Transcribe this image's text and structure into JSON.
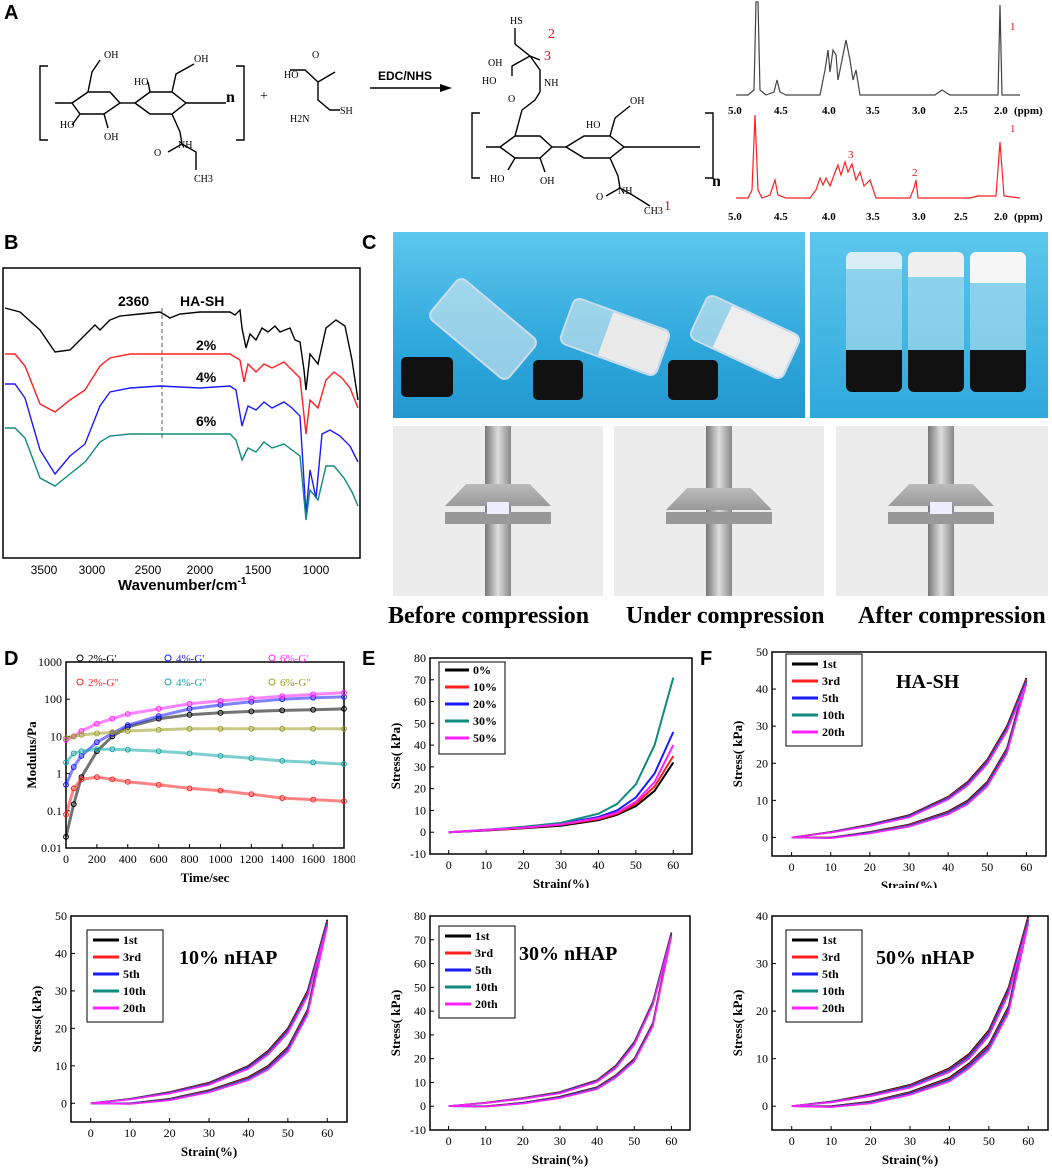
{
  "panels": {
    "A": "A",
    "B": "B",
    "C": "C",
    "D": "D",
    "E": "E",
    "F": "F"
  },
  "scheme": {
    "reagent": "EDC/NHS",
    "plus": "+",
    "n": "n",
    "oh": "OH",
    "ho": "HO",
    "o": "O",
    "nh": "NH",
    "sh": "SH",
    "h2n": "H2N",
    "ch3": "CH3",
    "label_sh": "HS",
    "num1": "1",
    "num2": "2",
    "num3": "3"
  },
  "nmr": {
    "unit": "(ppm)",
    "ticks": [
      "5.0",
      "4.5",
      "4.0",
      "3.5",
      "3.0",
      "2.5",
      "2.0"
    ],
    "top_peak_label": "1",
    "bottom_peak_labels": [
      "3",
      "2",
      "1"
    ]
  },
  "ftir": {
    "type": "line",
    "series_labels": [
      "HA-SH",
      "2%",
      "4%",
      "6%"
    ],
    "marker_label": "2360",
    "xlabel": "Wavenumber/cm",
    "xlabel_sup": "-1",
    "xticks": [
      "3500",
      "3000",
      "2500",
      "2000",
      "1500",
      "1000"
    ]
  },
  "photos": {
    "captions": [
      "Before compression",
      "Under compression",
      "After compression"
    ]
  },
  "colors": {
    "black": "#000000",
    "red": "#ff2020",
    "blue": "#1a1aff",
    "teal": "#0e8a7e",
    "magenta": "#ff20ff",
    "olive": "#9a9a20",
    "cyan": "#12a5a5"
  },
  "chart_data": [
    {
      "id": "D",
      "type": "scatter",
      "xlabel": "Time/sec",
      "ylabel": "Modulus/Pa",
      "xlim": [
        0,
        1800
      ],
      "ylim": [
        0.01,
        1000
      ],
      "yscale": "log",
      "xticks": [
        "0",
        "200",
        "400",
        "600",
        "800",
        "1000",
        "1200",
        "1400",
        "1600",
        "1800"
      ],
      "yticks": [
        "0.01",
        "0.1",
        "1",
        "10",
        "100",
        "1000"
      ],
      "legend": [
        "2%-G'",
        "2%-G''",
        "4%-G'",
        "4%-G''",
        "6%-G'",
        "6%-G''"
      ],
      "series": [
        {
          "name": "2%-G'",
          "x": [
            0,
            50,
            100,
            200,
            300,
            400,
            600,
            800,
            1000,
            1200,
            1400,
            1600,
            1800
          ],
          "values": [
            0.02,
            0.15,
            0.8,
            4,
            10,
            18,
            30,
            38,
            43,
            47,
            50,
            52,
            55
          ]
        },
        {
          "name": "2%-G''",
          "x": [
            0,
            50,
            100,
            200,
            300,
            400,
            600,
            800,
            1000,
            1200,
            1400,
            1600,
            1800
          ],
          "values": [
            0.08,
            0.4,
            0.7,
            0.8,
            0.7,
            0.6,
            0.5,
            0.4,
            0.35,
            0.28,
            0.22,
            0.2,
            0.18
          ]
        },
        {
          "name": "4%-G'",
          "x": [
            0,
            50,
            100,
            200,
            300,
            400,
            600,
            800,
            1000,
            1200,
            1400,
            1600,
            1800
          ],
          "values": [
            0.5,
            1.5,
            3,
            7,
            12,
            20,
            35,
            55,
            70,
            85,
            100,
            110,
            115
          ]
        },
        {
          "name": "4%-G''",
          "x": [
            0,
            50,
            100,
            200,
            300,
            400,
            600,
            800,
            1000,
            1200,
            1400,
            1600,
            1800
          ],
          "values": [
            2,
            3.5,
            4,
            4.5,
            4.5,
            4.4,
            4,
            3.5,
            3,
            2.6,
            2.2,
            2,
            1.8
          ]
        },
        {
          "name": "6%-G'",
          "x": [
            0,
            50,
            100,
            200,
            300,
            400,
            600,
            800,
            1000,
            1200,
            1400,
            1600,
            1800
          ],
          "values": [
            8,
            10,
            14,
            22,
            30,
            40,
            55,
            75,
            90,
            105,
            120,
            135,
            150
          ]
        },
        {
          "name": "6%-G''",
          "x": [
            0,
            50,
            100,
            200,
            300,
            400,
            600,
            800,
            1000,
            1200,
            1400,
            1600,
            1800
          ],
          "values": [
            9,
            10,
            11,
            12,
            13,
            14,
            15,
            16,
            16,
            16,
            16,
            16,
            16
          ]
        }
      ]
    },
    {
      "id": "E",
      "type": "line",
      "xlabel": "Strain(%)",
      "ylabel": "Stress(  kPa)",
      "xlim": [
        -5,
        65
      ],
      "ylim": [
        -10,
        80
      ],
      "xticks": [
        "0",
        "10",
        "20",
        "30",
        "40",
        "50",
        "60"
      ],
      "yticks": [
        "-10",
        "0",
        "10",
        "20",
        "30",
        "40",
        "50",
        "60",
        "70",
        "80"
      ],
      "series": [
        {
          "name": "0%",
          "x": [
            0,
            10,
            20,
            30,
            40,
            45,
            50,
            55,
            60
          ],
          "values": [
            0,
            0.8,
            1.8,
            3,
            5.5,
            8,
            12,
            19,
            32
          ]
        },
        {
          "name": "10%",
          "x": [
            0,
            10,
            20,
            30,
            40,
            45,
            50,
            55,
            60
          ],
          "values": [
            0,
            0.9,
            2,
            3.4,
            6,
            8.5,
            13,
            21,
            35
          ]
        },
        {
          "name": "20%",
          "x": [
            0,
            10,
            20,
            30,
            40,
            45,
            50,
            55,
            60
          ],
          "values": [
            0,
            1,
            2.2,
            3.8,
            7,
            10,
            16,
            27,
            46
          ]
        },
        {
          "name": "30%",
          "x": [
            0,
            10,
            20,
            30,
            40,
            45,
            50,
            55,
            60
          ],
          "values": [
            0,
            1.1,
            2.5,
            4.3,
            8.5,
            13,
            22,
            40,
            71
          ]
        },
        {
          "name": "50%",
          "x": [
            0,
            10,
            20,
            30,
            40,
            45,
            50,
            55,
            60
          ],
          "values": [
            0,
            1,
            2.1,
            3.6,
            6.5,
            9,
            14,
            23,
            40
          ]
        }
      ]
    },
    {
      "id": "F1",
      "type": "line",
      "title": "HA-SH",
      "xlabel": "Strain(%)",
      "ylabel": "Stress(  kPa)",
      "xlim": [
        -5,
        65
      ],
      "ylim": [
        -5,
        50
      ],
      "xticks": [
        "0",
        "10",
        "20",
        "30",
        "40",
        "50",
        "60"
      ],
      "yticks": [
        "0",
        "10",
        "20",
        "30",
        "40",
        "50"
      ],
      "loading": {
        "x": [
          0,
          10,
          20,
          30,
          40,
          45,
          50,
          55,
          60
        ],
        "values": [
          0,
          1.5,
          3.5,
          6,
          11,
          15,
          21,
          30,
          43
        ]
      },
      "unloading": {
        "x": [
          60,
          55,
          50,
          45,
          40,
          30,
          20,
          10,
          0
        ],
        "values": [
          43,
          24,
          15,
          10,
          7,
          3.5,
          1.5,
          0,
          0
        ]
      },
      "series": [
        "1st",
        "3rd",
        "5th",
        "10th",
        "20th"
      ]
    },
    {
      "id": "F2",
      "type": "line",
      "title": "10% nHAP",
      "xlabel": "Strain(%)",
      "ylabel": "Stress(  kPa)",
      "xlim": [
        -5,
        65
      ],
      "ylim": [
        -5,
        50
      ],
      "xticks": [
        "0",
        "10",
        "20",
        "30",
        "40",
        "50",
        "60"
      ],
      "yticks": [
        "0",
        "10",
        "20",
        "30",
        "40",
        "50"
      ],
      "loading": {
        "x": [
          0,
          10,
          20,
          30,
          40,
          45,
          50,
          55,
          60
        ],
        "values": [
          0,
          1.2,
          3,
          5.5,
          10,
          14,
          20,
          30,
          49
        ]
      },
      "unloading": {
        "x": [
          60,
          55,
          50,
          45,
          40,
          30,
          20,
          10,
          0
        ],
        "values": [
          49,
          25,
          15,
          10,
          7,
          3.5,
          1.2,
          0,
          0
        ]
      },
      "series": [
        "1st",
        "3rd",
        "5th",
        "10th",
        "20th"
      ]
    },
    {
      "id": "F3",
      "type": "line",
      "title": "30% nHAP",
      "xlabel": "Strain(%)",
      "ylabel": "Stress(  kPa)",
      "xlim": [
        -5,
        65
      ],
      "ylim": [
        -10,
        80
      ],
      "xticks": [
        "0",
        "10",
        "20",
        "30",
        "40",
        "50",
        "60"
      ],
      "yticks": [
        "-10",
        "0",
        "10",
        "20",
        "30",
        "40",
        "50",
        "60",
        "70",
        "80"
      ],
      "loading": {
        "x": [
          0,
          10,
          20,
          30,
          40,
          45,
          50,
          55,
          60
        ],
        "values": [
          0,
          1.5,
          3.5,
          6,
          11,
          17,
          27,
          44,
          73
        ]
      },
      "unloading": {
        "x": [
          60,
          55,
          50,
          45,
          40,
          30,
          20,
          10,
          0
        ],
        "values": [
          73,
          35,
          20,
          13,
          8,
          4,
          1.5,
          0,
          0
        ]
      },
      "series": [
        "1st",
        "3rd",
        "5th",
        "10th",
        "20th"
      ]
    },
    {
      "id": "F4",
      "type": "line",
      "title": "50% nHAP",
      "xlabel": "Strain(%)",
      "ylabel": "Stress(  kPa)",
      "xlim": [
        -5,
        65
      ],
      "ylim": [
        -5,
        40
      ],
      "xticks": [
        "0",
        "10",
        "20",
        "30",
        "40",
        "50",
        "60"
      ],
      "yticks": [
        "0",
        "10",
        "20",
        "30",
        "40"
      ],
      "loading": {
        "x": [
          0,
          10,
          20,
          30,
          40,
          45,
          50,
          55,
          60
        ],
        "values": [
          0,
          1,
          2.5,
          4.5,
          8,
          11,
          16,
          25,
          40
        ]
      },
      "unloading": {
        "x": [
          60,
          55,
          50,
          45,
          40,
          30,
          20,
          10,
          0
        ],
        "values": [
          40,
          21,
          13,
          9,
          6,
          3,
          1,
          0,
          0
        ]
      },
      "series": [
        "1st",
        "3rd",
        "5th",
        "10th",
        "20th"
      ]
    }
  ]
}
